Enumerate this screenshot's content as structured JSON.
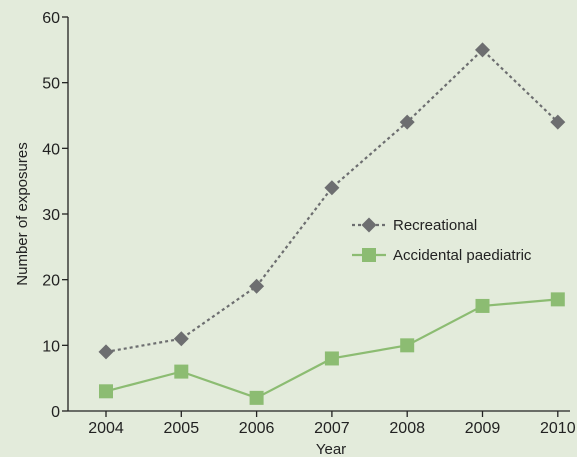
{
  "chart_data": {
    "type": "line",
    "title": "",
    "xlabel": "Year",
    "ylabel": "Number of exposures",
    "categories": [
      "2004",
      "2005",
      "2006",
      "2007",
      "2008",
      "2009",
      "2010"
    ],
    "ylim": [
      0,
      60
    ],
    "yticks": [
      0,
      10,
      20,
      30,
      40,
      50,
      60
    ],
    "grid": false,
    "legend_position": "center-right",
    "background_color": "#e3ebdb",
    "series": [
      {
        "name": "Recreational",
        "values": [
          9,
          11,
          19,
          34,
          44,
          55,
          44
        ],
        "color": "#6d6e70",
        "line_style": "dotted",
        "marker": "diamond"
      },
      {
        "name": "Accidental paediatric",
        "values": [
          3,
          6,
          2,
          8,
          10,
          16,
          17
        ],
        "color": "#8cbc72",
        "line_style": "solid",
        "marker": "square"
      }
    ]
  }
}
